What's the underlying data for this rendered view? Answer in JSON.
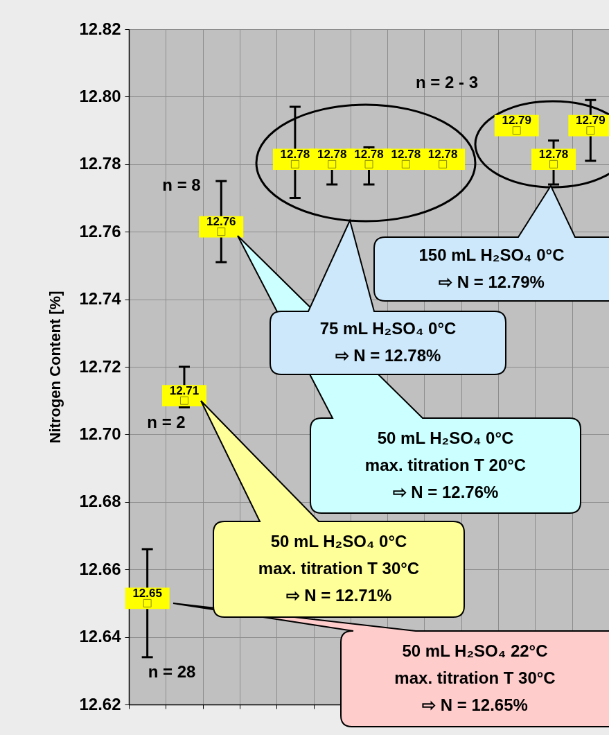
{
  "chart_data": {
    "type": "scatter",
    "ylabel": "Nitrogen Content  [%]",
    "categories": [
      null,
      null,
      null,
      null,
      null,
      null,
      null,
      null,
      null,
      null,
      null,
      null,
      null
    ],
    "series": [
      {
        "color": "#ffff00",
        "values": [
          12.65,
          12.71,
          12.76,
          null,
          12.78,
          12.78,
          12.78,
          12.78,
          12.78,
          null,
          12.79,
          12.78,
          12.79
        ],
        "errors": [
          [
            12.634,
            12.666
          ],
          [
            12.708,
            12.72
          ],
          [
            12.751,
            12.775
          ],
          null,
          [
            12.77,
            12.797
          ],
          [
            12.774,
            12.784
          ],
          [
            12.774,
            12.785
          ],
          null,
          null,
          null,
          null,
          [
            12.774,
            12.787
          ],
          [
            12.781,
            12.799
          ]
        ]
      }
    ],
    "ylim": [
      12.62,
      12.82
    ],
    "yticks": [
      12.62,
      12.64,
      12.66,
      12.68,
      {
        "value": 12.7,
        "label": "12.70"
      },
      12.72,
      12.74,
      12.76,
      12.78,
      {
        "value": 12.8,
        "label": "12.80"
      },
      12.82
    ],
    "grid": true,
    "marker": "square",
    "data_labels": true,
    "annotations": [
      "n = 28",
      "n = 2",
      "n = 8",
      "n = 2 - 3",
      "50 mL H₂SO₄ 22°C\nmax. titration T 30°C\n⇨ N = 12.65%",
      "50 mL H₂SO₄ 0°C\nmax. titration T 30°C\n⇨ N = 12.71%",
      "50 mL H₂SO₄ 0°C\nmax. titration T 20°C\n⇨ N = 12.76%",
      "75 mL H₂SO₄ 0°C\n⇨ N = 12.78%",
      "150 mL H₂SO₄ 0°C\n⇨ N = 12.79%"
    ]
  }
}
